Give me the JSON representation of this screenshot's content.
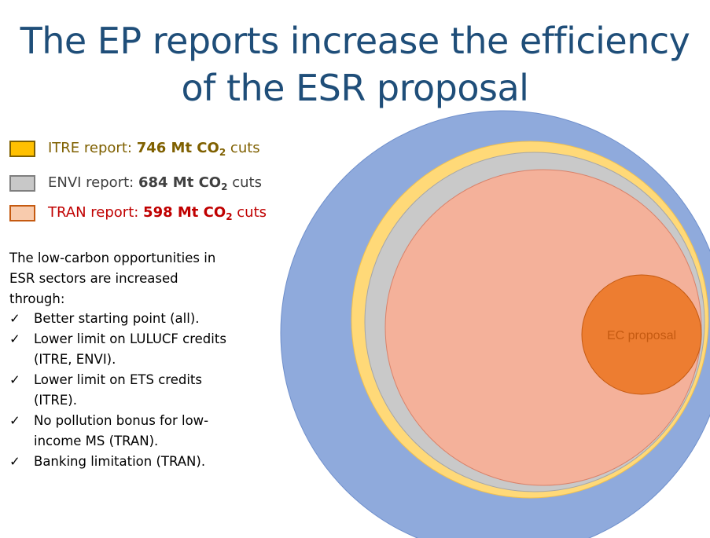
{
  "title": "The EP reports increase the efficiency of the ESR proposal",
  "legend": [
    {
      "label": "ITRE report:",
      "value": "746 Mt CO",
      "sub": "2",
      "suffix": "cuts",
      "color": "#ffc000",
      "fill": "#ffc000",
      "text_color": "#7f6000"
    },
    {
      "label": "ENVI report:",
      "value": "684 Mt CO",
      "sub": "2",
      "suffix": "cuts",
      "color": "#404040",
      "fill": "#c8c8c8",
      "text_color": "#404040"
    },
    {
      "label": "TRAN report:",
      "value": "598 Mt CO",
      "sub": "2",
      "suffix": "cuts",
      "color": "#c00000",
      "fill": "#f8cbad",
      "text_color": "#c00000"
    }
  ],
  "intro": "The low-carbon opportunities in ESR sectors are increased through:",
  "points": [
    "Better starting point (all).",
    "Lower limit on LULUCF credits (ITRE, ENVI).",
    "Lower limit on ETS credits (ITRE).",
    "No pollution bonus for low-income MS (TRAN).",
    "Banking limitation (TRAN)."
  ],
  "check_glyph": "✓",
  "ec_label": "EC proposal",
  "colors": {
    "title": "#1f4e79",
    "outer": "#8faadc",
    "itre": "#ffd978",
    "envi": "#c9c9c9",
    "tran": "#f4b19a",
    "ec": "#ed7d31",
    "ec_text": "#c55a11"
  }
}
